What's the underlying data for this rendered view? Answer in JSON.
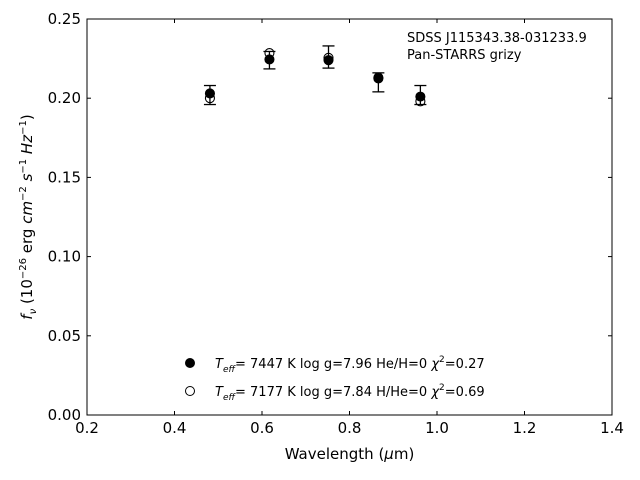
{
  "chart_data": {
    "type": "scatter",
    "xlabel": "Wavelength (μm)",
    "ylabel": "f_ν (10^−26 erg cm^−2 s^−1 Hz^−1)",
    "xlim": [
      0.2,
      1.4
    ],
    "ylim": [
      0.0,
      0.25
    ],
    "xticks": [
      "0.2",
      "0.4",
      "0.6",
      "0.8",
      "1.0",
      "1.2",
      "1.4"
    ],
    "yticks": [
      "0.00",
      "0.05",
      "0.10",
      "0.15",
      "0.20",
      "0.25"
    ],
    "grid": false,
    "legend_position": "bottom-center",
    "annotations": [
      "SDSS J115343.38-031233.9",
      "Pan-STARRS grizy"
    ],
    "observed": {
      "x": [
        0.481,
        0.617,
        0.752,
        0.866,
        0.962
      ],
      "y": [
        0.202,
        0.224,
        0.226,
        0.21,
        0.202
      ],
      "err": [
        0.006,
        0.0055,
        0.007,
        0.006,
        0.006
      ]
    },
    "series": [
      {
        "name_parts": {
          "teff_value": "7447 K",
          "logg": "log g=7.96",
          "comp": "He/H=0",
          "chi2": "=0.27"
        },
        "marker": "filled",
        "x": [
          0.481,
          0.617,
          0.752,
          0.866,
          0.962
        ],
        "y": [
          0.203,
          0.2245,
          0.224,
          0.2125,
          0.201
        ]
      },
      {
        "name_parts": {
          "teff_value": "7177 K",
          "logg": "log g=7.84",
          "comp": "H/He=0",
          "chi2": "=0.69"
        },
        "marker": "open",
        "x": [
          0.481,
          0.617,
          0.752,
          0.866,
          0.962
        ],
        "y": [
          0.2,
          0.2285,
          0.2255,
          0.213,
          0.198
        ]
      }
    ]
  }
}
